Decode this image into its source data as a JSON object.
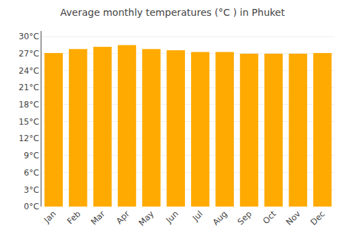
{
  "chart_data": {
    "type": "bar",
    "title": "Average monthly temperatures (°C ) in Phuket",
    "categories": [
      "Jan",
      "Feb",
      "Mar",
      "Apr",
      "May",
      "Jun",
      "Jul",
      "Aug",
      "Sep",
      "Oct",
      "Nov",
      "Dec"
    ],
    "values": [
      27.1,
      27.8,
      28.2,
      28.5,
      27.8,
      27.6,
      27.3,
      27.3,
      27.0,
      27.0,
      27.0,
      27.1
    ],
    "color": "#FFAA00",
    "ylim": [
      0,
      31
    ],
    "yticks": [
      {
        "value": 0,
        "label": "0°C"
      },
      {
        "value": 3,
        "label": "3°C"
      },
      {
        "value": 6,
        "label": "6°C"
      },
      {
        "value": 9,
        "label": "9°C"
      },
      {
        "value": 12,
        "label": "12°C"
      },
      {
        "value": 15,
        "label": "15°C"
      },
      {
        "value": 18,
        "label": "18°C"
      },
      {
        "value": 21,
        "label": "21°C"
      },
      {
        "value": 24,
        "label": "24°C"
      },
      {
        "value": 27,
        "label": "27°C"
      },
      {
        "value": 30,
        "label": "30°C"
      }
    ],
    "grid": true
  }
}
